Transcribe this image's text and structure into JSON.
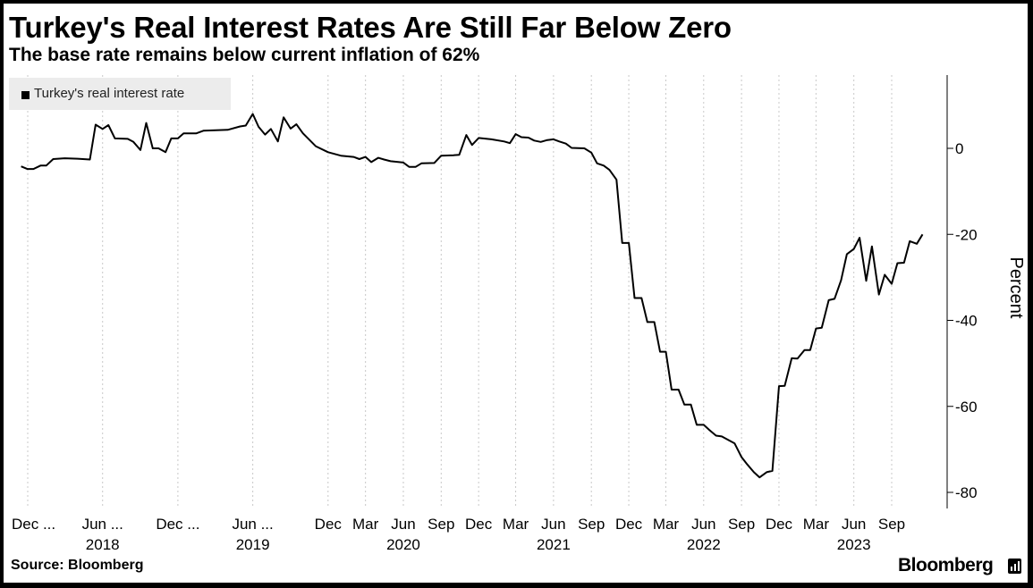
{
  "header": {
    "title": "Turkey's Real Interest Rates Are Still Far Below Zero",
    "subtitle": "The base rate remains below current inflation of 62%"
  },
  "legend": {
    "label": "Turkey's real interest rate"
  },
  "footer": {
    "source": "Source: Bloomberg",
    "brand": "Bloomberg",
    "brand_icon": "bloomberg-terminal-icon"
  },
  "colors": {
    "line": "#000000",
    "grid": "#c8c8c8",
    "background": "#ffffff",
    "legend_bg": "#ececec"
  },
  "chart_data": {
    "type": "line",
    "title": "Turkey's Real Interest Rates Are Still Far Below Zero",
    "subtitle": "The base rate remains below current inflation of 62%",
    "ylabel": "Percent",
    "ylim": [
      -80,
      10
    ],
    "yticks": [
      0,
      -20,
      -40,
      -60,
      -80
    ],
    "y_axis_position": "right",
    "grid": "vertical dotted",
    "legend": "top-left",
    "x_range": [
      "2017-11-15",
      "2023-12-01"
    ],
    "x_ticks": [
      {
        "date": "2017-12-01",
        "label": "Dec ...",
        "year": ""
      },
      {
        "date": "2018-06-01",
        "label": "Jun ...",
        "year": "2018"
      },
      {
        "date": "2018-12-01",
        "label": "Dec ...",
        "year": ""
      },
      {
        "date": "2019-06-01",
        "label": "Jun ...",
        "year": "2019"
      },
      {
        "date": "2019-12-01",
        "label": "Dec",
        "year": ""
      },
      {
        "date": "2020-03-01",
        "label": "Mar",
        "year": ""
      },
      {
        "date": "2020-06-01",
        "label": "Jun",
        "year": "2020"
      },
      {
        "date": "2020-09-01",
        "label": "Sep",
        "year": ""
      },
      {
        "date": "2020-12-01",
        "label": "Dec",
        "year": ""
      },
      {
        "date": "2021-03-01",
        "label": "Mar",
        "year": ""
      },
      {
        "date": "2021-06-01",
        "label": "Jun",
        "year": "2021"
      },
      {
        "date": "2021-09-01",
        "label": "Sep",
        "year": ""
      },
      {
        "date": "2021-12-01",
        "label": "Dec",
        "year": ""
      },
      {
        "date": "2022-03-01",
        "label": "Mar",
        "year": ""
      },
      {
        "date": "2022-06-01",
        "label": "Jun",
        "year": "2022"
      },
      {
        "date": "2022-09-01",
        "label": "Sep",
        "year": ""
      },
      {
        "date": "2022-12-01",
        "label": "Dec",
        "year": ""
      },
      {
        "date": "2023-03-01",
        "label": "Mar",
        "year": ""
      },
      {
        "date": "2023-06-01",
        "label": "Jun",
        "year": "2023"
      },
      {
        "date": "2023-09-01",
        "label": "Sep",
        "year": ""
      }
    ],
    "series": [
      {
        "name": "Turkey's real interest rate",
        "points": [
          [
            "2017-11-15",
            -4.2
          ],
          [
            "2017-11-30",
            -4.8
          ],
          [
            "2017-12-15",
            -4.8
          ],
          [
            "2018-01-01",
            -4.0
          ],
          [
            "2018-01-15",
            -4.0
          ],
          [
            "2018-02-01",
            -2.5
          ],
          [
            "2018-03-01",
            -2.3
          ],
          [
            "2018-04-01",
            -2.4
          ],
          [
            "2018-05-01",
            -2.6
          ],
          [
            "2018-05-15",
            5.5
          ],
          [
            "2018-06-01",
            4.5
          ],
          [
            "2018-06-15",
            5.4
          ],
          [
            "2018-07-01",
            2.3
          ],
          [
            "2018-08-01",
            2.2
          ],
          [
            "2018-08-15",
            1.5
          ],
          [
            "2018-09-01",
            -0.4
          ],
          [
            "2018-09-15",
            5.9
          ],
          [
            "2018-10-01",
            0.0
          ],
          [
            "2018-10-15",
            0.0
          ],
          [
            "2018-11-01",
            -0.9
          ],
          [
            "2018-11-15",
            2.3
          ],
          [
            "2018-12-01",
            2.3
          ],
          [
            "2018-12-15",
            3.5
          ],
          [
            "2019-01-15",
            3.5
          ],
          [
            "2019-02-01",
            4.1
          ],
          [
            "2019-04-01",
            4.3
          ],
          [
            "2019-05-01",
            5.1
          ],
          [
            "2019-05-15",
            5.3
          ],
          [
            "2019-06-01",
            8.0
          ],
          [
            "2019-06-15",
            5.0
          ],
          [
            "2019-07-01",
            3.2
          ],
          [
            "2019-07-15",
            4.5
          ],
          [
            "2019-08-01",
            1.6
          ],
          [
            "2019-08-15",
            7.2
          ],
          [
            "2019-09-01",
            4.6
          ],
          [
            "2019-09-15",
            5.6
          ],
          [
            "2019-10-01",
            3.5
          ],
          [
            "2019-11-01",
            0.5
          ],
          [
            "2019-12-01",
            -0.9
          ],
          [
            "2020-01-01",
            -1.7
          ],
          [
            "2020-02-01",
            -2.0
          ],
          [
            "2020-02-15",
            -2.5
          ],
          [
            "2020-03-01",
            -2.0
          ],
          [
            "2020-03-15",
            -3.2
          ],
          [
            "2020-04-01",
            -2.2
          ],
          [
            "2020-04-15",
            -2.6
          ],
          [
            "2020-05-01",
            -3.0
          ],
          [
            "2020-06-01",
            -3.3
          ],
          [
            "2020-06-15",
            -4.3
          ],
          [
            "2020-07-01",
            -4.3
          ],
          [
            "2020-07-15",
            -3.5
          ],
          [
            "2020-08-15",
            -3.4
          ],
          [
            "2020-09-01",
            -1.7
          ],
          [
            "2020-10-01",
            -1.6
          ],
          [
            "2020-10-15",
            -1.5
          ],
          [
            "2020-11-01",
            3.1
          ],
          [
            "2020-11-15",
            0.8
          ],
          [
            "2020-12-01",
            2.4
          ],
          [
            "2021-01-01",
            2.1
          ],
          [
            "2021-02-01",
            1.6
          ],
          [
            "2021-02-15",
            1.2
          ],
          [
            "2021-03-01",
            3.3
          ],
          [
            "2021-03-15",
            2.6
          ],
          [
            "2021-04-01",
            2.5
          ],
          [
            "2021-04-15",
            1.8
          ],
          [
            "2021-05-01",
            1.5
          ],
          [
            "2021-05-15",
            1.9
          ],
          [
            "2021-06-01",
            2.1
          ],
          [
            "2021-06-15",
            1.6
          ],
          [
            "2021-07-01",
            1.1
          ],
          [
            "2021-07-15",
            0.1
          ],
          [
            "2021-08-15",
            0.0
          ],
          [
            "2021-09-01",
            -1.0
          ],
          [
            "2021-09-15",
            -3.5
          ],
          [
            "2021-10-01",
            -4.0
          ],
          [
            "2021-10-15",
            -5.0
          ],
          [
            "2021-11-01",
            -7.3
          ],
          [
            "2021-11-15",
            -22.0
          ],
          [
            "2021-12-01",
            -22.0
          ],
          [
            "2021-12-15",
            -34.8
          ],
          [
            "2022-01-01",
            -34.8
          ],
          [
            "2022-01-15",
            -40.4
          ],
          [
            "2022-02-01",
            -40.4
          ],
          [
            "2022-02-15",
            -47.3
          ],
          [
            "2022-03-01",
            -47.3
          ],
          [
            "2022-03-15",
            -56.1
          ],
          [
            "2022-04-01",
            -56.1
          ],
          [
            "2022-04-15",
            -59.6
          ],
          [
            "2022-05-01",
            -59.6
          ],
          [
            "2022-05-15",
            -64.3
          ],
          [
            "2022-06-01",
            -64.3
          ],
          [
            "2022-06-15",
            -65.5
          ],
          [
            "2022-07-01",
            -66.8
          ],
          [
            "2022-07-15",
            -67.0
          ],
          [
            "2022-08-15",
            -68.6
          ],
          [
            "2022-09-01",
            -71.8
          ],
          [
            "2022-09-15",
            -73.5
          ],
          [
            "2022-10-01",
            -75.3
          ],
          [
            "2022-10-15",
            -76.5
          ],
          [
            "2022-11-01",
            -75.3
          ],
          [
            "2022-11-15",
            -75.0
          ],
          [
            "2022-12-01",
            -55.3
          ],
          [
            "2022-12-15",
            -55.2
          ],
          [
            "2023-01-01",
            -48.8
          ],
          [
            "2023-01-15",
            -48.9
          ],
          [
            "2023-02-01",
            -46.9
          ],
          [
            "2023-02-15",
            -46.9
          ],
          [
            "2023-03-01",
            -41.9
          ],
          [
            "2023-03-15",
            -41.7
          ],
          [
            "2023-04-01",
            -35.3
          ],
          [
            "2023-04-15",
            -35.0
          ],
          [
            "2023-05-01",
            -30.7
          ],
          [
            "2023-05-15",
            -24.6
          ],
          [
            "2023-06-01",
            -23.4
          ],
          [
            "2023-06-15",
            -20.8
          ],
          [
            "2023-07-01",
            -30.8
          ],
          [
            "2023-07-15",
            -22.8
          ],
          [
            "2023-08-01",
            -34.0
          ],
          [
            "2023-08-15",
            -29.4
          ],
          [
            "2023-09-01",
            -31.5
          ],
          [
            "2023-09-15",
            -26.7
          ],
          [
            "2023-10-01",
            -26.6
          ],
          [
            "2023-10-15",
            -21.6
          ],
          [
            "2023-11-01",
            -22.2
          ],
          [
            "2023-11-15",
            -20.0
          ]
        ]
      }
    ]
  }
}
